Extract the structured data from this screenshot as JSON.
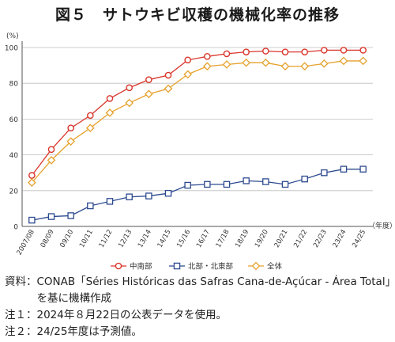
{
  "title": "図５　サトウキビ収穫の機械化率の推移",
  "chart_data": {
    "type": "line",
    "y_unit_label": "(%)",
    "x_unit_label": "（年度）",
    "ylim": [
      0,
      100
    ],
    "yticks": [
      0,
      20,
      40,
      60,
      80,
      100
    ],
    "grid": true,
    "legend_position": "bottom",
    "categories": [
      "2007/08",
      "08/09",
      "09/10",
      "10/11",
      "11/12",
      "12/13",
      "13/14",
      "14/15",
      "15/16",
      "16/17",
      "17/18",
      "18/19",
      "19/20",
      "20/21",
      "21/22",
      "22/23",
      "23/24",
      "24/25"
    ],
    "series": [
      {
        "name": "中南部",
        "color": "#d9352b",
        "marker": "circle",
        "values": [
          28.5,
          43,
          55,
          62,
          71.5,
          77.5,
          82,
          84.5,
          93,
          95,
          96.5,
          97.5,
          98,
          97.5,
          97.5,
          98.5,
          98.5,
          98.5
        ]
      },
      {
        "name": "北部・北東部",
        "color": "#2c4a8f",
        "marker": "square",
        "values": [
          3.5,
          5.5,
          6,
          11.5,
          14,
          16.5,
          17,
          18.5,
          23,
          23.5,
          23.5,
          25.5,
          25,
          23.5,
          26.5,
          30,
          32,
          32
        ]
      },
      {
        "name": "全体",
        "color": "#e5a12b",
        "marker": "diamond",
        "values": [
          24.5,
          37,
          47.5,
          55,
          63.5,
          69,
          74,
          77,
          85,
          89.5,
          90.5,
          91.5,
          91.5,
          89.5,
          89.5,
          91,
          92.5,
          92.5
        ]
      }
    ]
  },
  "notes": [
    {
      "label": "資料：",
      "text": "CONAB「Séries Históricas das Safras Cana-de-Açúcar - Área Total」を基に機構作成"
    },
    {
      "label": "注１：",
      "text": "2024年８月22日の公表データを使用。"
    },
    {
      "label": "注２：",
      "text": "24/25年度は予測値。"
    }
  ]
}
